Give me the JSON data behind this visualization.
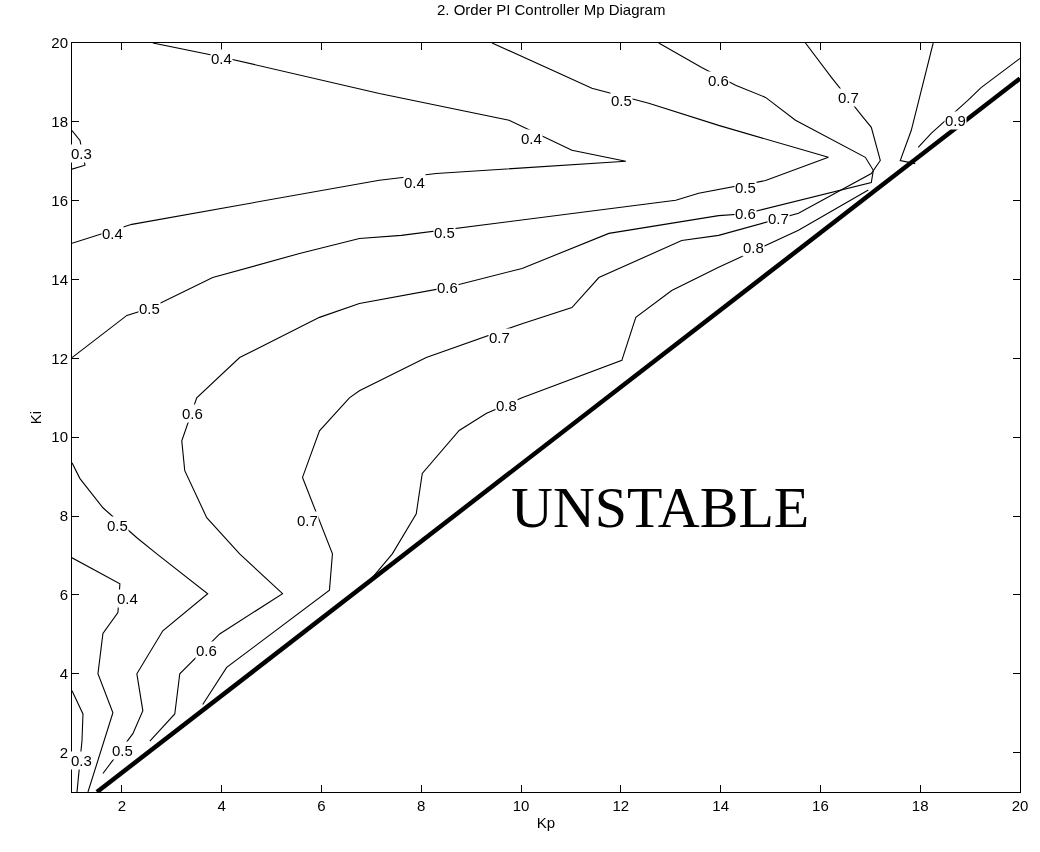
{
  "chart_data": {
    "type": "line",
    "title": "2. Order PI Controller Mp Diagram",
    "xlabel": "Kp",
    "ylabel": "Ki",
    "xlim": [
      1,
      20
    ],
    "xticks": [
      2,
      4,
      6,
      8,
      10,
      12,
      14,
      16,
      18,
      20
    ],
    "ylim": [
      1,
      20
    ],
    "yticks": [
      2,
      4,
      6,
      8,
      10,
      12,
      14,
      16,
      18,
      20
    ],
    "marker": "none",
    "line_style": "solid",
    "series": [
      {
        "color": "#000000",
        "x": [
          1.0,
          1.16,
          1.26,
          1.0
        ],
        "values": [
          17.78,
          17.53,
          16.9,
          16.8
        ]
      },
      {
        "color": "#000000",
        "x": [
          2.62,
          4.02,
          7.16,
          9.76,
          11.02,
          12.1,
          8.3,
          7.16,
          2.2,
          1.0
        ],
        "values": [
          20.0,
          19.64,
          18.72,
          18.04,
          17.28,
          17.0,
          16.69,
          16.52,
          15.4,
          14.92
        ]
      },
      {
        "color": "#000000",
        "x": [
          9.42,
          10.76,
          11.42,
          12.56,
          13.96,
          16.16,
          14.9,
          13.56,
          13.1,
          7.6,
          6.76,
          5.56,
          3.82,
          2.56,
          2.1,
          1.0
        ],
        "values": [
          20.0,
          19.23,
          18.85,
          18.47,
          17.91,
          17.1,
          16.51,
          16.19,
          16.01,
          15.12,
          15.04,
          14.66,
          14.05,
          13.27,
          13.09,
          12.02
        ]
      },
      {
        "color": "#000000",
        "x": [
          12.76,
          13.62,
          14.3,
          14.9,
          15.5,
          16.9,
          17.06,
          17.02,
          14.5,
          13.96,
          11.76,
          10.02,
          8.52,
          6.76,
          5.96,
          4.36,
          3.5,
          3.2,
          3.26,
          3.7,
          4.36,
          5.22,
          3.96,
          3.16,
          3.06,
          2.56
        ],
        "values": [
          20.0,
          19.38,
          18.93,
          18.62,
          18.04,
          17.1,
          16.77,
          16.46,
          15.67,
          15.62,
          15.17,
          14.28,
          13.8,
          13.39,
          13.04,
          12.02,
          11.0,
          9.91,
          9.15,
          7.96,
          7.04,
          6.03,
          5.01,
          4.0,
          2.98,
          2.29
        ]
      },
      {
        "color": "#000000",
        "x": [
          15.7,
          16.22,
          16.82,
          17.02,
          17.2,
          17.02,
          15.56,
          13.96,
          13.22,
          11.56,
          11.02,
          10.02,
          8.1,
          6.76,
          6.56,
          5.96,
          5.62,
          6.22,
          6.16,
          4.1,
          3.62
        ],
        "values": [
          20.0,
          19.13,
          18.17,
          17.86,
          17.02,
          16.69,
          15.68,
          15.12,
          14.99,
          14.05,
          13.29,
          12.88,
          12.02,
          11.18,
          11.0,
          10.16,
          8.98,
          7.04,
          6.12,
          4.16,
          3.22
        ]
      },
      {
        "color": "#000000",
        "x": [
          16.96,
          15.56,
          13.96,
          13.02,
          12.3,
          12.02,
          10.02,
          9.3,
          8.76,
          8.02,
          7.9,
          7.42,
          6.96
        ],
        "values": [
          16.27,
          15.25,
          14.31,
          13.72,
          13.04,
          11.95,
          11.0,
          10.6,
          10.17,
          9.08,
          8.06,
          7.04,
          6.35
        ]
      },
      {
        "color": "#000000",
        "x": [
          18.26,
          17.82,
          17.6,
          17.9
        ],
        "values": [
          20.0,
          17.78,
          17.02,
          16.94
        ]
      },
      {
        "color": "#000000",
        "x": [
          20.0,
          19.22,
          18.96,
          18.22,
          17.96
        ],
        "values": [
          19.61,
          18.87,
          18.55,
          17.71,
          17.35
        ]
      },
      {
        "color": "#000000",
        "x": [
          1.0,
          1.16,
          1.62,
          2.3,
          2.7,
          3.72,
          2.82,
          2.3,
          2.42,
          2.22,
          1.62
        ],
        "values": [
          9.35,
          8.95,
          8.21,
          7.45,
          7.04,
          6.03,
          5.09,
          4.0,
          3.06,
          2.48,
          1.47
        ]
      },
      {
        "color": "#000000",
        "x": [
          1.0,
          1.96,
          1.92,
          1.62,
          1.52,
          1.82,
          1.32
        ],
        "values": [
          6.94,
          6.28,
          5.55,
          5.02,
          4.0,
          3.01,
          1.0
        ]
      },
      {
        "color": "#000000",
        "x": [
          1.0,
          1.22,
          1.2,
          1.1
        ],
        "values": [
          3.57,
          2.98,
          2.3,
          1.0
        ]
      },
      {
        "color": "#000000",
        "x": [
          1.5,
          20.0
        ],
        "values": [
          1.0,
          19.1
        ]
      }
    ],
    "annotations": [
      {
        "text": "0.3",
        "x": 1.2,
        "y": 17.2
      },
      {
        "text": "0.4",
        "x": 4.0,
        "y": 19.6
      },
      {
        "text": "0.4",
        "x": 10.2,
        "y": 17.58
      },
      {
        "text": "0.4",
        "x": 7.86,
        "y": 16.46
      },
      {
        "text": "0.4",
        "x": 1.82,
        "y": 15.17
      },
      {
        "text": "0.5",
        "x": 12.02,
        "y": 18.55
      },
      {
        "text": "0.5",
        "x": 14.5,
        "y": 16.34
      },
      {
        "text": "0.5",
        "x": 8.46,
        "y": 15.2
      },
      {
        "text": "0.5",
        "x": 2.56,
        "y": 13.27
      },
      {
        "text": "0.6",
        "x": 13.96,
        "y": 19.05
      },
      {
        "text": "0.6",
        "x": 14.5,
        "y": 15.67
      },
      {
        "text": "0.6",
        "x": 8.52,
        "y": 13.8
      },
      {
        "text": "0.6",
        "x": 3.42,
        "y": 10.6
      },
      {
        "text": "0.6",
        "x": 3.7,
        "y": 4.58
      },
      {
        "text": "0.7",
        "x": 16.56,
        "y": 18.62
      },
      {
        "text": "0.7",
        "x": 15.16,
        "y": 15.55
      },
      {
        "text": "0.7",
        "x": 9.56,
        "y": 12.53
      },
      {
        "text": "0.7",
        "x": 5.72,
        "y": 7.89
      },
      {
        "text": "0.8",
        "x": 14.66,
        "y": 14.81
      },
      {
        "text": "0.8",
        "x": 9.7,
        "y": 10.8
      },
      {
        "text": "0.9",
        "x": 18.7,
        "y": 18.04
      },
      {
        "text": "0.5",
        "x": 1.92,
        "y": 7.76
      },
      {
        "text": "0.5",
        "x": 2.02,
        "y": 2.05
      },
      {
        "text": "0.4",
        "x": 2.12,
        "y": 5.9
      },
      {
        "text": "0.3",
        "x": 1.2,
        "y": 1.79
      },
      "UNSTABLE"
    ]
  }
}
